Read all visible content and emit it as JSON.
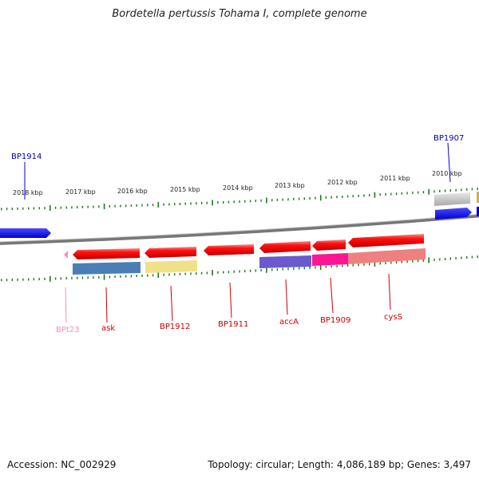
{
  "title": "Bordetella pertussis Tohama I, complete genome",
  "footer": {
    "accession": "Accession: NC_002929",
    "topology": "Topology: circular; Length: 4,086,189 bp; Genes: 3,497"
  },
  "kbp_ticks": [
    {
      "label": "2018 kbp"
    },
    {
      "label": "2017 kbp"
    },
    {
      "label": "2016 kbp"
    },
    {
      "label": "2015 kbp"
    },
    {
      "label": "2014 kbp"
    },
    {
      "label": "2013 kbp"
    },
    {
      "label": "2012 kbp"
    },
    {
      "label": "2011 kbp"
    },
    {
      "label": "2010 kbp"
    }
  ],
  "gene_labels": {
    "bp1914": "BP1914",
    "bp1907": "BP1907",
    "bpt23": "BPt23",
    "ask": "ask",
    "bp1912": "BP1912",
    "bp1911": "BP1911",
    "acca": "accA",
    "bp1909": "BP1909",
    "cyss": "cysS"
  },
  "colors": {
    "forward_gene": "#0000ee",
    "reverse_gene": "#ee0000",
    "trna": "#f090c0",
    "backbone": "#888888",
    "tick": "#1a7a1a"
  }
}
